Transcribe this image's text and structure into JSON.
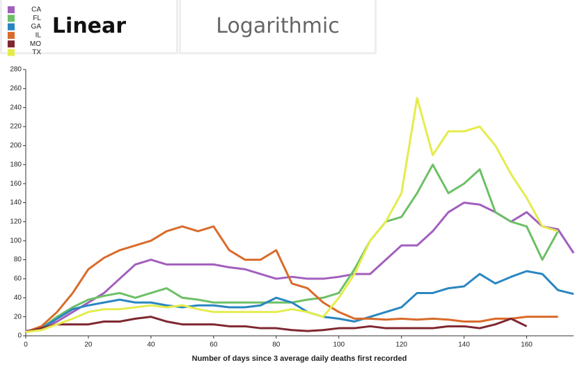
{
  "tabs": [
    "Linear",
    "Logarithmic"
  ],
  "chart_data": {
    "type": "line",
    "x_label": "Number of days since 3 average daily deaths first recorded",
    "x": [
      0,
      5,
      10,
      15,
      20,
      25,
      30,
      35,
      40,
      45,
      50,
      55,
      60,
      65,
      70,
      75,
      80,
      85,
      90,
      95,
      100,
      105,
      110,
      115,
      120,
      125,
      130,
      135,
      140,
      145,
      150,
      155,
      160,
      165,
      170,
      175
    ],
    "xlim": [
      0,
      175
    ],
    "xticks": [
      0,
      20,
      40,
      60,
      80,
      100,
      120,
      140,
      160
    ],
    "ylim": [
      0,
      280
    ],
    "yticks": [
      0,
      20,
      40,
      60,
      80,
      100,
      120,
      140,
      160,
      180,
      200,
      220,
      240,
      260,
      280
    ],
    "series": [
      {
        "name": "CA",
        "color": "#a25ebd",
        "values": [
          5,
          8,
          15,
          25,
          35,
          45,
          60,
          75,
          80,
          75,
          75,
          75,
          75,
          72,
          70,
          65,
          60,
          62,
          60,
          60,
          62,
          65,
          65,
          80,
          95,
          95,
          110,
          130,
          140,
          138,
          130,
          120,
          130,
          115,
          112,
          87
        ]
      },
      {
        "name": "FL",
        "color": "#6cc066",
        "values": [
          4,
          8,
          20,
          30,
          38,
          42,
          45,
          40,
          45,
          50,
          40,
          38,
          35,
          35,
          35,
          35,
          35,
          35,
          38,
          40,
          45,
          70,
          100,
          120,
          125,
          150,
          180,
          150,
          160,
          175,
          130,
          120,
          115,
          80,
          110,
          null
        ]
      },
      {
        "name": "GA",
        "color": "#2a86c0",
        "values": [
          4,
          8,
          18,
          28,
          32,
          35,
          38,
          35,
          35,
          32,
          30,
          32,
          32,
          30,
          30,
          32,
          40,
          35,
          25,
          20,
          18,
          15,
          20,
          25,
          30,
          45,
          45,
          50,
          52,
          65,
          55,
          62,
          68,
          65,
          48,
          44
        ]
      },
      {
        "name": "IL",
        "color": "#d96b2a",
        "values": [
          4,
          10,
          25,
          45,
          70,
          82,
          90,
          95,
          100,
          110,
          115,
          110,
          115,
          90,
          80,
          80,
          90,
          55,
          50,
          35,
          25,
          18,
          18,
          17,
          18,
          17,
          18,
          17,
          15,
          15,
          18,
          18,
          20,
          20,
          20,
          null
        ]
      },
      {
        "name": "MO",
        "color": "#7f2730",
        "values": [
          4,
          8,
          12,
          12,
          12,
          15,
          15,
          18,
          20,
          15,
          12,
          12,
          12,
          10,
          10,
          8,
          8,
          6,
          5,
          6,
          8,
          8,
          10,
          8,
          8,
          8,
          8,
          10,
          10,
          8,
          12,
          18,
          10,
          null,
          null,
          null
        ]
      },
      {
        "name": "TX",
        "color": "#e4ec4c",
        "values": [
          4,
          6,
          12,
          18,
          25,
          28,
          28,
          30,
          32,
          30,
          32,
          28,
          25,
          25,
          25,
          25,
          25,
          28,
          25,
          20,
          40,
          65,
          100,
          120,
          150,
          250,
          190,
          215,
          215,
          220,
          200,
          170,
          145,
          115,
          110,
          null
        ]
      }
    ]
  }
}
